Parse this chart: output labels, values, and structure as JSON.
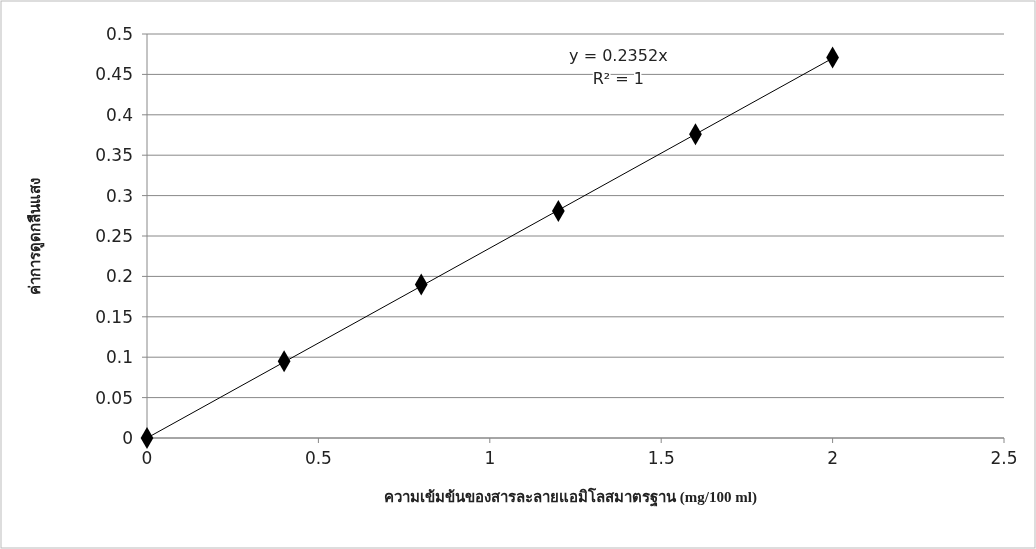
{
  "chart_data": {
    "type": "scatter",
    "xlabel": "ความเข้มข้นของสารละลายแอมิโลสมาตรฐาน (mg/100 ml)",
    "ylabel": "ค่าการดูดกลืนแสง",
    "xlim": [
      0,
      2.5
    ],
    "xticks": [
      0,
      0.5,
      1,
      1.5,
      2,
      2.5
    ],
    "ylim": [
      0,
      0.5
    ],
    "yticks": [
      0,
      0.05,
      0.1,
      0.15,
      0.2,
      0.25,
      0.3,
      0.35,
      0.4,
      0.45,
      0.5
    ],
    "grid": "y",
    "marker": "diamond",
    "series": [
      {
        "color": "#000000",
        "x": [
          0,
          0.4,
          0.8,
          1.2,
          1.6,
          2
        ],
        "values": [
          0,
          0.095,
          0.19,
          0.281,
          0.376,
          0.471
        ]
      },
      {
        "type": "line",
        "color": "#000000",
        "marker": "none",
        "line_style": "solid",
        "x": [
          0,
          2
        ],
        "values": [
          0,
          0.47
        ]
      }
    ],
    "annotations": [
      "y = 0.2352x",
      "R² = 1"
    ]
  }
}
